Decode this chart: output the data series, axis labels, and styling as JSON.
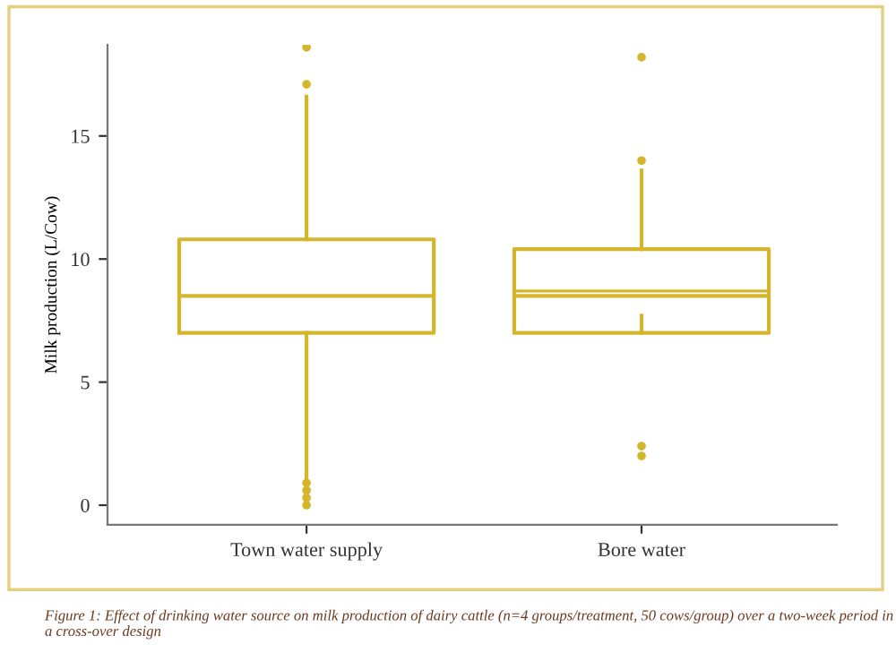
{
  "chart_data": {
    "type": "box",
    "ylabel": "Milk production (L/Cow)",
    "categories": [
      "Town water supply",
      "Bore water"
    ],
    "color": "#d4b62c",
    "boxes": [
      {
        "low": 1.1,
        "q1": 7.0,
        "median": 8.5,
        "q3": 10.8,
        "high": 16.6,
        "outliers": [
          0,
          0.3,
          0.6,
          0.9,
          17.1,
          18.6
        ]
      },
      {
        "low": 7.7,
        "q1": 7.0,
        "median": 8.5,
        "q3": 10.4,
        "high": 13.6,
        "mean": 8.7,
        "outliers": [
          2.0,
          2.4,
          14.0,
          18.2
        ]
      }
    ],
    "ylim": [
      -0.8,
      18.7
    ],
    "yticks": [
      0,
      5,
      10,
      15
    ],
    "grid": false,
    "annotations": [
      "Figure 1: Effect of drinking water source on milk production of dairy cattle (n=4 groups/treatment, 50 cows/group) over a two-week period in a cross-over design"
    ]
  }
}
